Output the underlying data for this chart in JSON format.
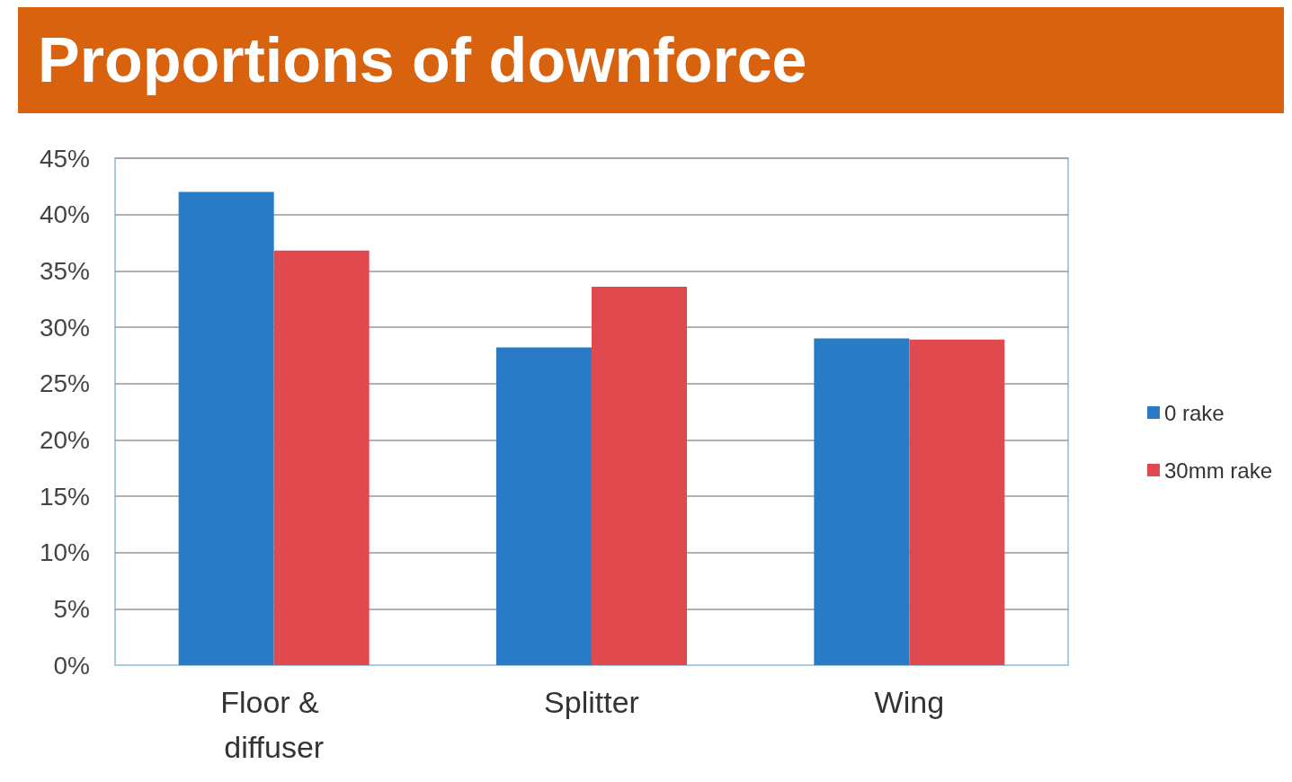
{
  "chart_data": {
    "type": "bar",
    "title": "Proportions of downforce",
    "categories": [
      "Floor & diffuser",
      "Splitter",
      "Wing"
    ],
    "series": [
      {
        "name": "0 rake",
        "color": "#2a7bc6",
        "values": [
          42,
          28.2,
          29
        ]
      },
      {
        "name": "30mm rake",
        "color": "#e04a4f",
        "values": [
          36.8,
          33.6,
          28.9
        ]
      }
    ],
    "ylim": [
      0,
      45
    ],
    "yticks": [
      {
        "value": 0,
        "label": "0%"
      },
      {
        "value": 5,
        "label": "5%"
      },
      {
        "value": 10,
        "label": "10%"
      },
      {
        "value": 15,
        "label": "15%"
      },
      {
        "value": 20,
        "label": "20%"
      },
      {
        "value": 25,
        "label": "25%"
      },
      {
        "value": 30,
        "label": "30%"
      },
      {
        "value": 35,
        "label": "35%"
      },
      {
        "value": 40,
        "label": "40%"
      },
      {
        "value": 45,
        "label": "45%"
      }
    ],
    "grid": true,
    "legend": "right"
  }
}
